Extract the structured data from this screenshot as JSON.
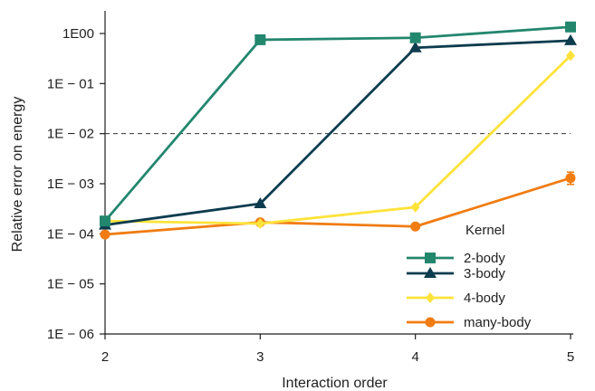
{
  "chart_data": {
    "type": "line",
    "title": "",
    "xlabel": "Interaction order",
    "ylabel": "Relative error on energy",
    "x": [
      2,
      3,
      4,
      5
    ],
    "x_ticks": [
      "2",
      "3",
      "4",
      "5"
    ],
    "xlim": [
      2,
      5
    ],
    "y_scale": "log",
    "ylim": [
      1e-06,
      2
    ],
    "y_ticks": [
      1,
      0.1,
      0.01,
      0.001,
      0.0001,
      1e-05,
      1e-06
    ],
    "y_tick_labels": [
      "1E00",
      "1E − 01",
      "1E − 02",
      "1E − 03",
      "1E − 04",
      "1E − 05",
      "1E − 06"
    ],
    "reference_line": {
      "y": 0.01,
      "style": "dashed"
    },
    "grid": false,
    "legend": {
      "title": "Kernel",
      "position": "lower-right"
    },
    "series": [
      {
        "name": "2-body",
        "color": "#23876e",
        "marker": "square",
        "values": [
          0.00018,
          0.75,
          0.82,
          1.35
        ]
      },
      {
        "name": "3-body",
        "color": "#0c3c4e",
        "marker": "triangle",
        "values": [
          0.00015,
          0.0004,
          0.52,
          0.72
        ]
      },
      {
        "name": "4-body",
        "color": "#fde33a",
        "marker": "diamond",
        "values": [
          0.00018,
          0.00016,
          0.00034,
          0.36
        ]
      },
      {
        "name": "many-body",
        "color": "#f07c12",
        "marker": "circle",
        "values": [
          9.7e-05,
          0.00017,
          0.00014,
          0.0013
        ],
        "error_last": [
          0.00097,
          0.0017
        ]
      }
    ]
  }
}
